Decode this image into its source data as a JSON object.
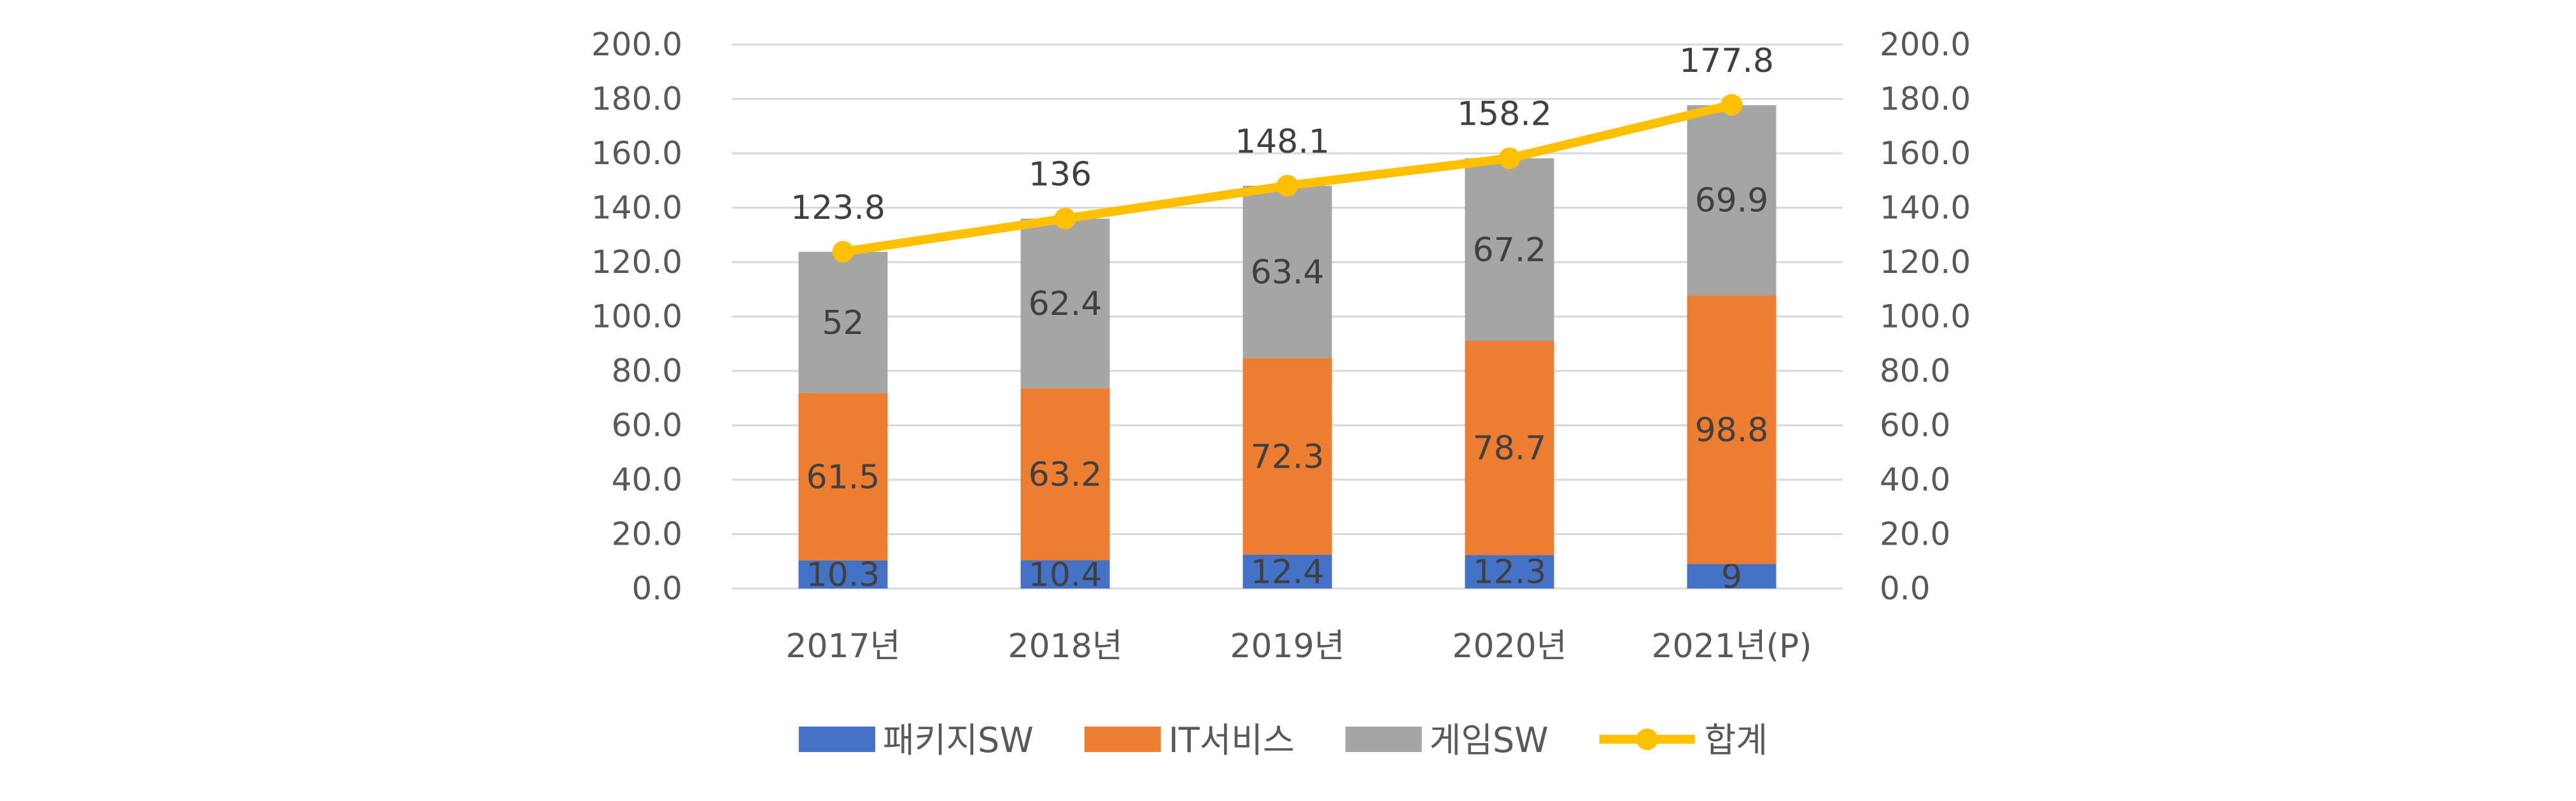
{
  "chart_data": {
    "type": "bar",
    "stacked": true,
    "categories": [
      "2017년",
      "2018년",
      "2019년",
      "2020년",
      "2021년(P)"
    ],
    "series": [
      {
        "name": "패키지SW",
        "type": "bar",
        "color": "#4472C4",
        "values": [
          10.3,
          10.4,
          12.4,
          12.3,
          9.0
        ]
      },
      {
        "name": "IT서비스",
        "type": "bar",
        "color": "#ED7D31",
        "values": [
          61.5,
          63.2,
          72.3,
          78.7,
          98.8
        ]
      },
      {
        "name": "게임SW",
        "type": "bar",
        "color": "#A5A5A5",
        "values": [
          52.0,
          62.4,
          63.4,
          67.2,
          69.9
        ]
      },
      {
        "name": "합계",
        "type": "line",
        "color": "#FFC000",
        "values": [
          123.8,
          136.0,
          148.1,
          158.2,
          177.8
        ]
      }
    ],
    "ylim": [
      0,
      200
    ],
    "yticks": [
      "0.0",
      "20.0",
      "40.0",
      "60.0",
      "80.0",
      "100.0",
      "120.0",
      "140.0",
      "160.0",
      "180.0",
      "200.0"
    ],
    "secondary_yticks": [
      "0.0",
      "20.0",
      "40.0",
      "60.0",
      "80.0",
      "100.0",
      "120.0",
      "140.0",
      "160.0",
      "180.0",
      "200.0"
    ],
    "grid": true,
    "legend": "bottom"
  }
}
